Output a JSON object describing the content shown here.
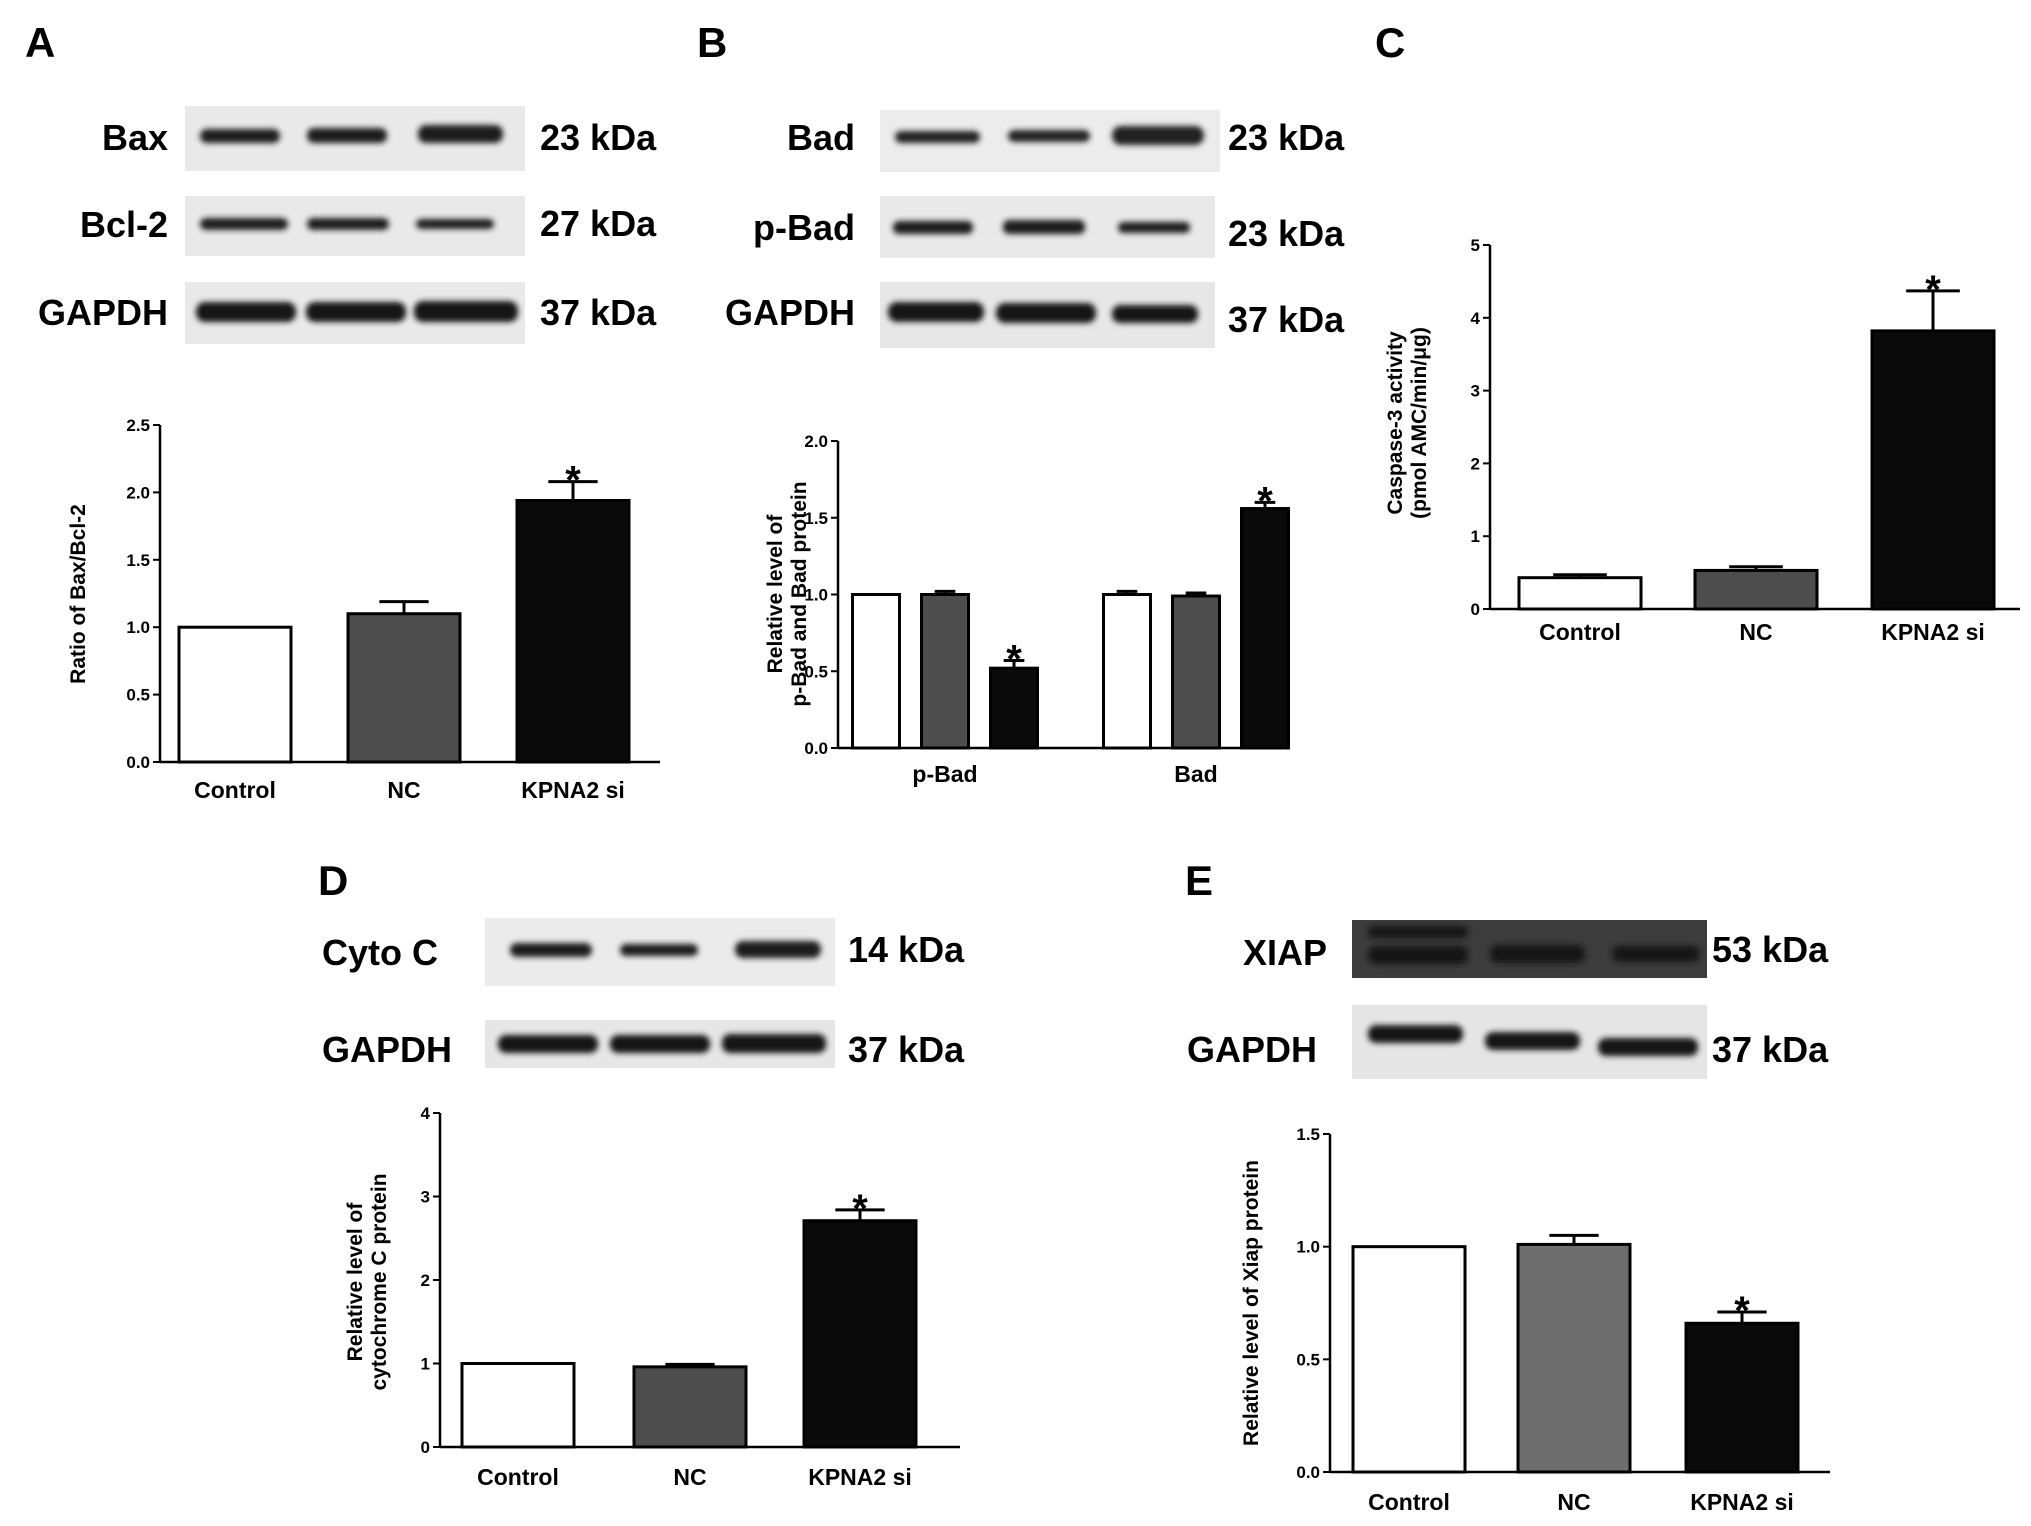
{
  "panels": {
    "A": {
      "letter": "A",
      "blots": [
        {
          "name": "Bax",
          "size": "23 kDa"
        },
        {
          "name": "Bcl-2",
          "size": "27 kDa"
        },
        {
          "name": "GAPDH",
          "size": "37 kDa"
        }
      ]
    },
    "B": {
      "letter": "B",
      "blots": [
        {
          "name": "Bad",
          "size": "23 kDa"
        },
        {
          "name": "p-Bad",
          "size": "23 kDa"
        },
        {
          "name": "GAPDH",
          "size": "37 kDa"
        }
      ]
    },
    "C": {
      "letter": "C"
    },
    "D": {
      "letter": "D",
      "blots": [
        {
          "name": "Cyto C",
          "size": "14 kDa"
        },
        {
          "name": "GAPDH",
          "size": "37 kDa"
        }
      ]
    },
    "E": {
      "letter": "E",
      "blots": [
        {
          "name": "XIAP",
          "size": "53 kDa"
        },
        {
          "name": "GAPDH",
          "size": "37 kDa"
        }
      ]
    }
  },
  "significance_marker": "*",
  "colors": {
    "control": "#ffffff",
    "nc": "#4d4d4d",
    "nc_light": "#6e6e6e",
    "kpna2": "#0a0a0a",
    "axis": "#000000"
  },
  "chart_data": [
    {
      "panel": "A",
      "type": "bar",
      "categories": [
        "Control",
        "NC",
        "KPNA2 si"
      ],
      "values": [
        1.0,
        1.1,
        1.94
      ],
      "errors": [
        0,
        0.09,
        0.14
      ],
      "significant": [
        false,
        false,
        true
      ],
      "ylabel": "Ratio of Bax/Bcl-2",
      "ylim": [
        0,
        2.5
      ],
      "yticks": [
        "0.0",
        "0.5",
        "1.0",
        "1.5",
        "2.0",
        "2.5"
      ]
    },
    {
      "panel": "B",
      "type": "bar",
      "groups": [
        "p-Bad",
        "Bad"
      ],
      "series": [
        {
          "values": [
            1.0,
            1.0
          ],
          "errors": [
            0,
            0.02
          ],
          "significant": [
            false,
            false
          ]
        },
        {
          "values": [
            1.0,
            0.99
          ],
          "errors": [
            0.02,
            0.02
          ],
          "significant": [
            false,
            false
          ]
        },
        {
          "values": [
            0.52,
            1.56
          ],
          "errors": [
            0.05,
            0.04
          ],
          "significant": [
            true,
            true
          ]
        }
      ],
      "ylabel": [
        "Relative level of",
        "p-Bad and Bad protein"
      ],
      "ylim": [
        0,
        2.0
      ],
      "yticks": [
        "0.0",
        "0.5",
        "1.0",
        "1.5",
        "2.0"
      ]
    },
    {
      "panel": "C",
      "type": "bar",
      "categories": [
        "Control",
        "NC",
        "KPNA2 si"
      ],
      "values": [
        0.43,
        0.53,
        3.82
      ],
      "errors": [
        0.04,
        0.05,
        0.55
      ],
      "significant": [
        false,
        false,
        true
      ],
      "ylabel": [
        "Caspase-3 activity",
        "(pmol AMC/min/μg)"
      ],
      "ylim": [
        0,
        5
      ],
      "yticks": [
        "0",
        "1",
        "2",
        "3",
        "4",
        "5"
      ]
    },
    {
      "panel": "D",
      "type": "bar",
      "categories": [
        "Control",
        "NC",
        "KPNA2 si"
      ],
      "values": [
        1.0,
        0.96,
        2.71
      ],
      "errors": [
        0,
        0.03,
        0.13
      ],
      "significant": [
        false,
        false,
        true
      ],
      "ylabel": [
        "Relative level of",
        "cytochrome C protein"
      ],
      "ylim": [
        0,
        4
      ],
      "yticks": [
        "0",
        "1",
        "2",
        "3",
        "4"
      ]
    },
    {
      "panel": "E",
      "type": "bar",
      "categories": [
        "Control",
        "NC",
        "KPNA2 si"
      ],
      "values": [
        1.0,
        1.01,
        0.66
      ],
      "errors": [
        0,
        0.04,
        0.05
      ],
      "significant": [
        false,
        false,
        true
      ],
      "ylabel": "Relative level of Xiap protein",
      "ylim": [
        0,
        1.5
      ],
      "yticks": [
        "0.0",
        "0.5",
        "1.0",
        "1.5"
      ]
    }
  ]
}
